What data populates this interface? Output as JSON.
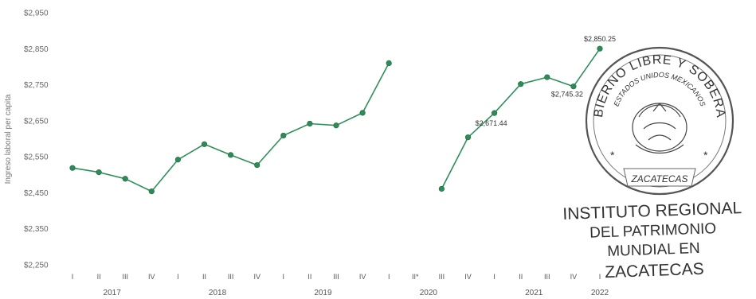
{
  "chart_data": {
    "type": "line",
    "ylabel": "Ingreso laboral per capita",
    "ylim": [
      2250,
      2950
    ],
    "yticks": [
      2950,
      2850,
      2750,
      2650,
      2550,
      2450,
      2350,
      2250
    ],
    "ytick_labels": [
      "$2,950",
      "$2,850",
      "$2,750",
      "$2,650",
      "$2,550",
      "$2,450",
      "$2,350",
      "$2,250"
    ],
    "quarters": [
      "I",
      "II",
      "III",
      "IV",
      "I",
      "II",
      "III",
      "IV",
      "I",
      "II",
      "III",
      "IV",
      "I",
      "II*",
      "III",
      "IV",
      "I",
      "II",
      "III",
      "IV",
      "I"
    ],
    "years": [
      {
        "label": "2017",
        "index": 1.5
      },
      {
        "label": "2018",
        "index": 5.5
      },
      {
        "label": "2019",
        "index": 9.5
      },
      {
        "label": "2020",
        "index": 13.5
      },
      {
        "label": "2021",
        "index": 17.5
      },
      {
        "label": "2022",
        "index": 20
      }
    ],
    "series": [
      {
        "line_color": "#2f8f5b",
        "marker_color": "#2e8b57",
        "values": [
          2519,
          2507,
          2489,
          2454,
          2542,
          2585,
          2555,
          2527,
          2609,
          2642,
          2637,
          2672,
          2810,
          null,
          2461,
          2604,
          2671.44,
          2752,
          2771,
          2745.32,
          2850.25
        ]
      }
    ],
    "annotations": [
      {
        "index": 16,
        "text": "$2,671.44"
      },
      {
        "index": 19,
        "text": "$2,745.32"
      },
      {
        "index": 20,
        "text": "$2,850.25"
      }
    ],
    "grid": false,
    "legend": "none"
  },
  "stamp": {
    "ring_top": "GOBIERNO LIBRE Y SOBERANO",
    "ring_inner": "ESTADOS UNIDOS MEXICANOS",
    "ring_bottom": "ZACATECAS",
    "institute_lines": [
      "INSTITUTO REGIONAL",
      "DEL PATRIMONIO",
      "MUNDIAL EN",
      "ZACATECAS"
    ]
  }
}
